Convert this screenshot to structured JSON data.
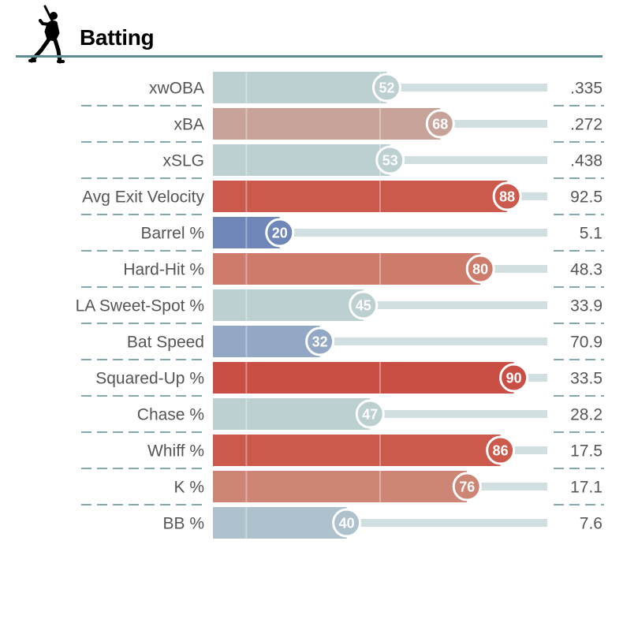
{
  "header": {
    "title": "Batting",
    "icon": "batter-silhouette-icon"
  },
  "colors": {
    "rule": "#5b8c93",
    "track": "#d2dfe0",
    "label": "#555555"
  },
  "chart_data": {
    "type": "bar",
    "orientation": "horizontal",
    "title": "Batting",
    "xlim": [
      0,
      100
    ],
    "categories": [
      "xwOBA",
      "xBA",
      "xSLG",
      "Avg Exit Velocity",
      "Barrel %",
      "Hard-Hit %",
      "LA Sweet-Spot %",
      "Bat Speed",
      "Squared-Up %",
      "Chase %",
      "Whiff %",
      "K %",
      "BB %"
    ],
    "percentiles": [
      52,
      68,
      53,
      88,
      20,
      80,
      45,
      32,
      90,
      47,
      86,
      76,
      40
    ],
    "values": [
      ".335",
      ".272",
      ".438",
      "92.5",
      "5.1",
      "48.3",
      "33.9",
      "70.9",
      "33.5",
      "28.2",
      "17.5",
      "17.1",
      "7.6"
    ],
    "bar_colors": [
      "#bccfd1",
      "#c8a39a",
      "#bccfd1",
      "#cb5a4d",
      "#6f86b9",
      "#cd7c6c",
      "#bccfd1",
      "#93a8c5",
      "#c94f45",
      "#bccfd1",
      "#cb5a4d",
      "#cd8575",
      "#adc2cc"
    ]
  }
}
